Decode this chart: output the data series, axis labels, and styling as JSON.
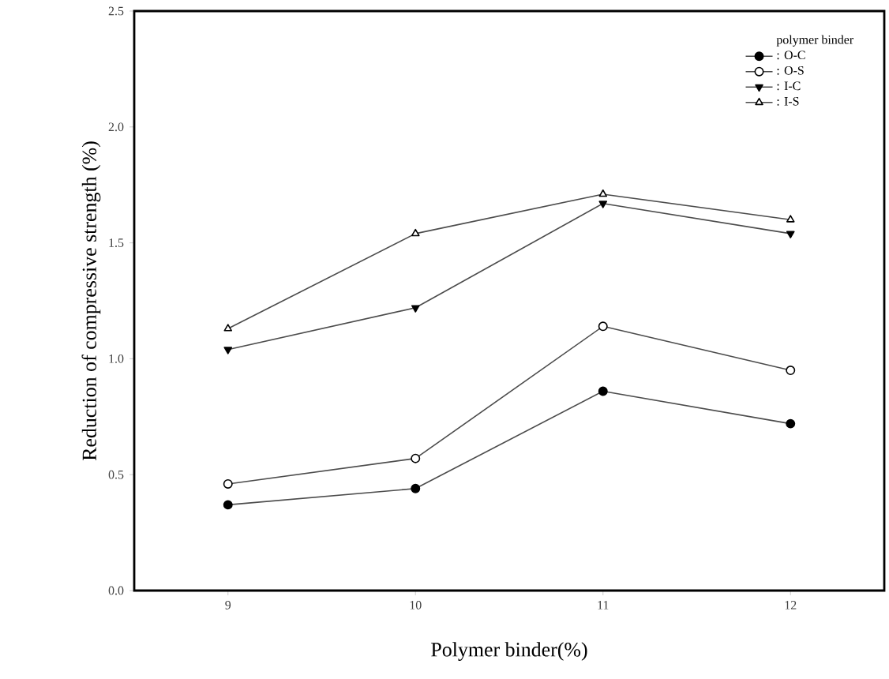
{
  "chart_data": {
    "type": "line",
    "xlabel": "Polymer binder(%)",
    "ylabel": "Reduction of compressive strength (%)",
    "legend_title": "polymer binder",
    "x": [
      9,
      10,
      11,
      12
    ],
    "xlim": [
      8.5,
      12.5
    ],
    "xticks": [
      9,
      10,
      11,
      12
    ],
    "ylim": [
      0,
      2.5
    ],
    "yticks": [
      {
        "value": 0,
        "label": "0.0"
      },
      {
        "value": 0.5,
        "label": "0.5"
      },
      {
        "value": 1,
        "label": "1.0"
      },
      {
        "value": 1.5,
        "label": "1.5"
      },
      {
        "value": 2,
        "label": "2.0"
      },
      {
        "value": 2.5,
        "label": "2.5"
      }
    ],
    "legend": "top right",
    "grid": false,
    "line_style": "solid",
    "series": [
      {
        "name": ": O-C",
        "color": "#000000",
        "marker": "circle",
        "values": [
          0.37,
          0.44,
          0.86,
          0.72
        ]
      },
      {
        "name": ": O-S",
        "color": "#000000",
        "marker": "circle",
        "values": [
          0.46,
          0.57,
          1.14,
          0.95
        ]
      },
      {
        "name": ": I-C",
        "color": "#000000",
        "marker": "triangle",
        "values": [
          1.04,
          1.22,
          1.67,
          1.54
        ]
      },
      {
        "name": ": I-S",
        "color": "#000000",
        "marker": "triangle",
        "values": [
          1.13,
          1.54,
          1.71,
          1.6
        ]
      }
    ]
  }
}
